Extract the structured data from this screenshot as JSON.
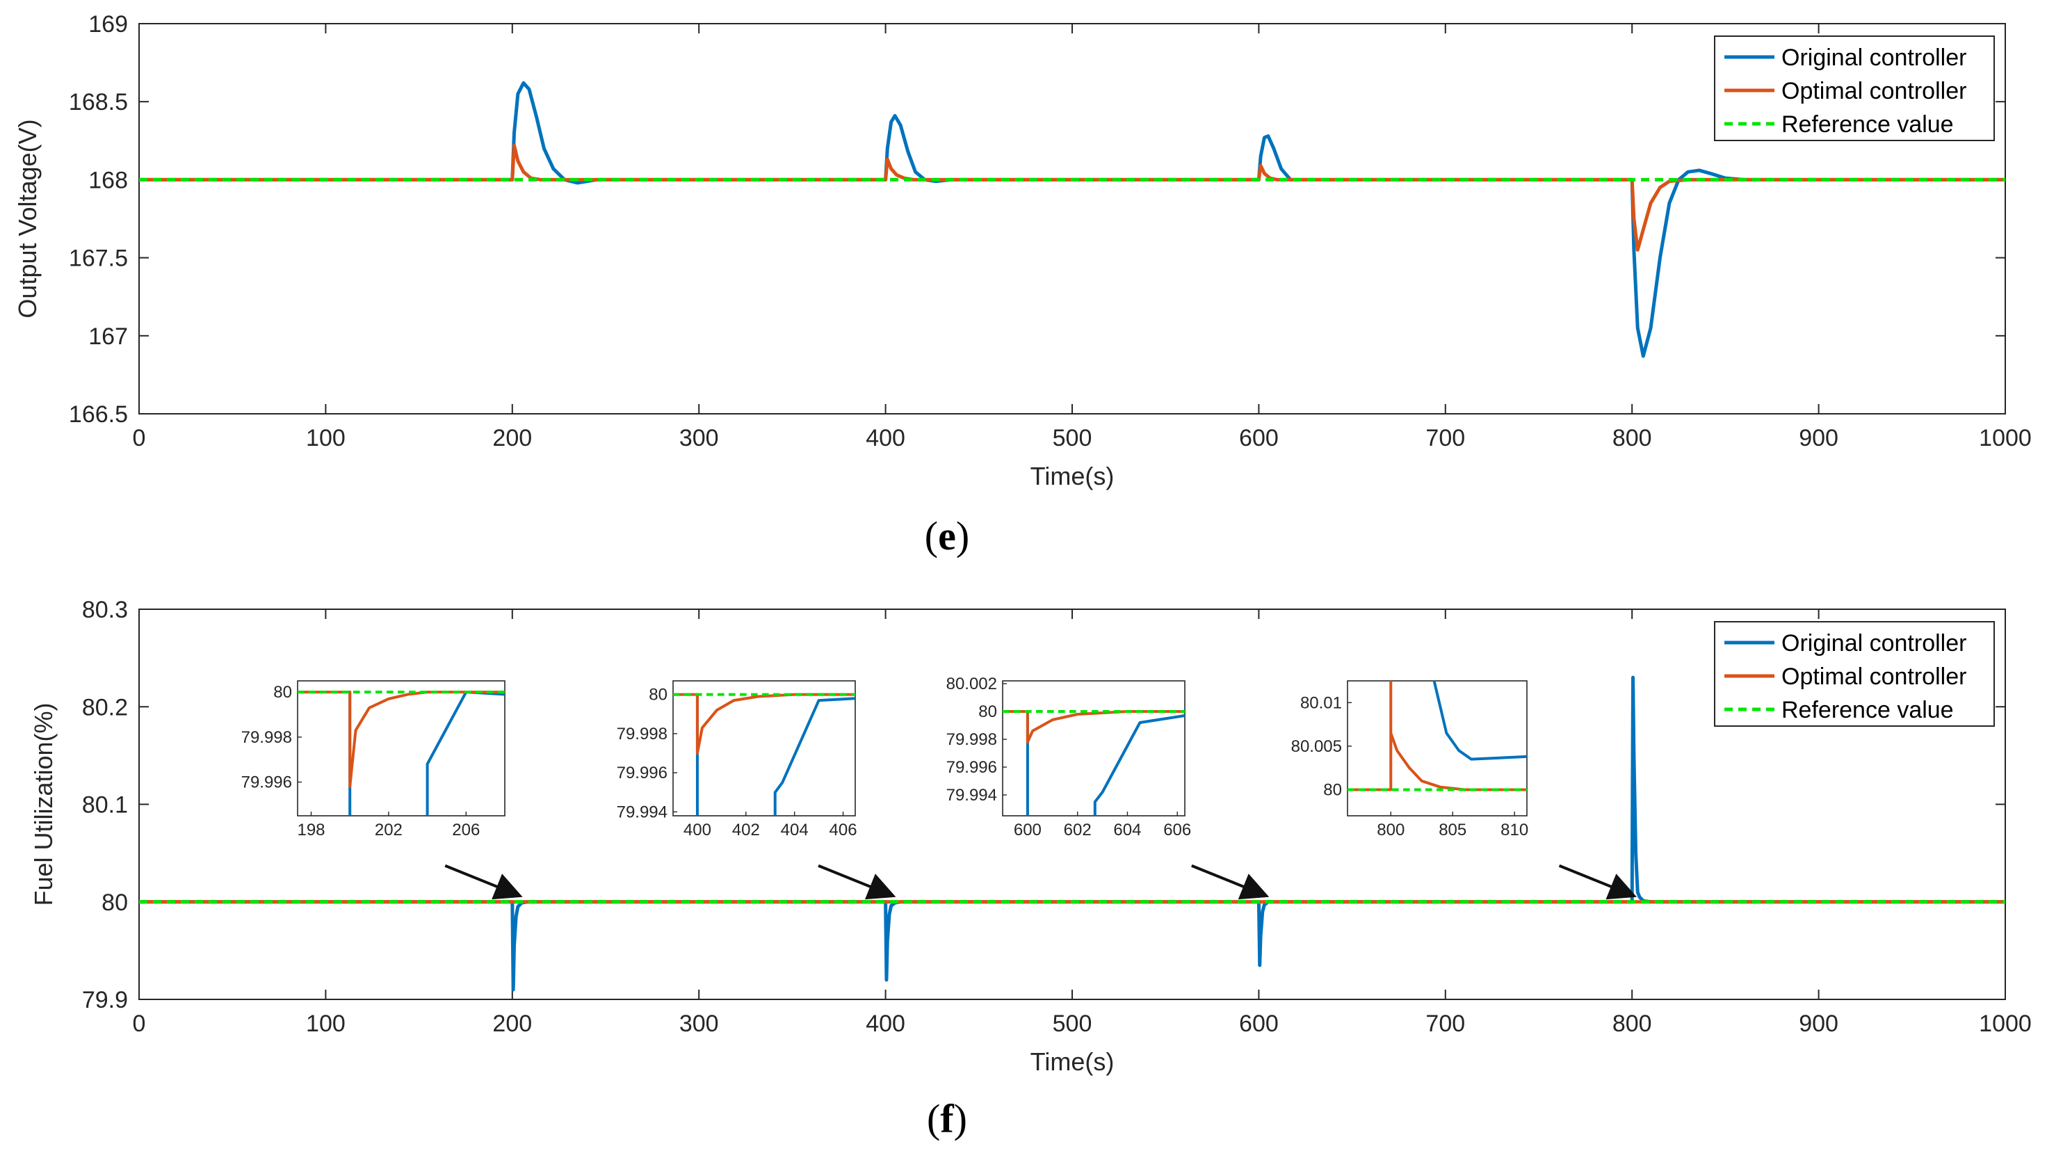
{
  "chart_data": [
    {
      "id": "e",
      "type": "line",
      "caption": "e",
      "xlabel": "Time(s)",
      "ylabel": "Output Voltage(V)",
      "xlim": [
        0,
        1000
      ],
      "ylim": [
        166.5,
        169
      ],
      "xticks": [
        0,
        100,
        200,
        300,
        400,
        500,
        600,
        700,
        800,
        900,
        1000
      ],
      "yticks": [
        166.5,
        167,
        167.5,
        168,
        168.5,
        169
      ],
      "ytick_labels": [
        "166.5",
        "167",
        "167.5",
        "168",
        "168.5",
        "169"
      ],
      "legend": [
        "Original controller",
        "Optimal controller",
        "Reference value"
      ],
      "legend_position": "top-right",
      "series": [
        {
          "name": "Original controller",
          "color": "#0072BD",
          "x": [
            0,
            200,
            201,
            203,
            206,
            209,
            213,
            217,
            222,
            228,
            235,
            245,
            400,
            401,
            403,
            405,
            408,
            412,
            416,
            421,
            427,
            435,
            600,
            601,
            603,
            605,
            608,
            612,
            617,
            625,
            800,
            801,
            803,
            806,
            810,
            815,
            820,
            825,
            830,
            836,
            842,
            850,
            860,
            1000
          ],
          "y": [
            168,
            168,
            168.3,
            168.55,
            168.62,
            168.58,
            168.4,
            168.2,
            168.07,
            168.0,
            167.98,
            168.0,
            168,
            168.2,
            168.37,
            168.41,
            168.35,
            168.18,
            168.05,
            168.0,
            167.99,
            168.0,
            168,
            168.15,
            168.27,
            168.28,
            168.2,
            168.07,
            168.0,
            168.0,
            168,
            167.55,
            167.05,
            166.87,
            167.05,
            167.5,
            167.85,
            168.0,
            168.05,
            168.06,
            168.04,
            168.01,
            168.0,
            168
          ]
        },
        {
          "name": "Optimal controller",
          "color": "#D95319",
          "x": [
            0,
            200,
            201,
            203,
            206,
            210,
            215,
            222,
            400,
            401,
            403,
            406,
            410,
            415,
            600,
            601,
            603,
            606,
            610,
            800,
            801,
            803,
            806,
            810,
            815,
            820,
            830,
            1000
          ],
          "y": [
            168,
            168,
            168.22,
            168.12,
            168.05,
            168.01,
            168.0,
            168.0,
            168,
            168.13,
            168.07,
            168.03,
            168.01,
            168.0,
            168,
            168.09,
            168.04,
            168.01,
            168.0,
            168,
            167.75,
            167.55,
            167.68,
            167.85,
            167.95,
            167.99,
            168.0,
            168
          ]
        },
        {
          "name": "Reference value",
          "color": "#00E600",
          "dashed": true,
          "x": [
            0,
            1000
          ],
          "y": [
            168,
            168
          ]
        }
      ]
    },
    {
      "id": "f",
      "type": "line",
      "caption": "f",
      "xlabel": "Time(s)",
      "ylabel": "Fuel Utilization(%)",
      "xlim": [
        0,
        1000
      ],
      "ylim": [
        79.9,
        80.3
      ],
      "xticks": [
        0,
        100,
        200,
        300,
        400,
        500,
        600,
        700,
        800,
        900,
        1000
      ],
      "yticks": [
        79.9,
        80,
        80.1,
        80.2,
        80.3
      ],
      "ytick_labels": [
        "79.9",
        "80",
        "80.1",
        "80.2",
        "80.3"
      ],
      "legend": [
        "Original controller",
        "Optimal controller",
        "Reference value"
      ],
      "legend_position": "top-right",
      "series": [
        {
          "name": "Original controller",
          "color": "#0072BD",
          "x": [
            0,
            200,
            200.5,
            201,
            202,
            203,
            205,
            208,
            215,
            400,
            400.5,
            401,
            402,
            403,
            405,
            408,
            415,
            600,
            600.5,
            601,
            602,
            603,
            605,
            610,
            800,
            800.5,
            801,
            802,
            803,
            804,
            806,
            810,
            1000
          ],
          "y": [
            80,
            80,
            79.91,
            79.955,
            79.985,
            79.995,
            79.999,
            80.0,
            80.0,
            80,
            79.92,
            79.96,
            79.987,
            79.996,
            79.999,
            80.0,
            80.0,
            80,
            79.935,
            79.965,
            79.99,
            79.997,
            80.0,
            80.0,
            80,
            80.23,
            80.15,
            80.05,
            80.01,
            80.005,
            80.001,
            80.0,
            80
          ]
        },
        {
          "name": "Optimal controller",
          "color": "#D95319",
          "x": [
            0,
            1000
          ],
          "y": [
            80,
            80
          ]
        },
        {
          "name": "Reference value",
          "color": "#00E600",
          "dashed": true,
          "x": [
            0,
            1000
          ],
          "y": [
            80,
            80
          ]
        }
      ],
      "insets": [
        {
          "xlim": [
            197.3,
            208
          ],
          "ylim": [
            79.9945,
            80.0005
          ],
          "xticks": [
            198,
            202,
            206
          ],
          "yticks": [
            79.996,
            79.998,
            80
          ],
          "ytick_labels": [
            "79.996",
            "79.998",
            "80"
          ],
          "arrow_to_x": 205,
          "series": [
            {
              "name": "Original controller",
              "x": [
                200,
                200,
                200,
                204,
                204,
                206,
                208
              ],
              "y": [
                80,
                79.999,
                79.994,
                79.994,
                79.9968,
                80.0,
                79.9999
              ]
            },
            {
              "name": "Optimal controller",
              "x": [
                197.3,
                200,
                200,
                200.3,
                201,
                202,
                203,
                204,
                206,
                208
              ],
              "y": [
                80,
                80,
                79.9958,
                79.9983,
                79.9993,
                79.9997,
                79.9999,
                80,
                80,
                80
              ]
            },
            {
              "name": "Reference value",
              "dashed": true,
              "x": [
                197.3,
                208
              ],
              "y": [
                80,
                80
              ]
            }
          ]
        },
        {
          "xlim": [
            399,
            406.5
          ],
          "ylim": [
            79.9938,
            80.0007
          ],
          "xticks": [
            400,
            402,
            404,
            406
          ],
          "yticks": [
            79.994,
            79.996,
            79.998,
            80
          ],
          "ytick_labels": [
            "79.994",
            "79.996",
            "79.998",
            "80"
          ],
          "arrow_to_x": 405,
          "series": [
            {
              "name": "Original controller",
              "x": [
                400,
                400,
                400,
                403.2,
                403.2,
                403.5,
                405,
                406.5
              ],
              "y": [
                80,
                79.9985,
                79.9935,
                79.9935,
                79.995,
                79.9955,
                79.9997,
                79.9998
              ]
            },
            {
              "name": "Optimal controller",
              "x": [
                399,
                400,
                400,
                400.2,
                400.8,
                401.5,
                402.5,
                404,
                406.5
              ],
              "y": [
                80,
                80,
                79.997,
                79.9983,
                79.9992,
                79.9997,
                79.9999,
                80,
                80
              ]
            },
            {
              "name": "Reference value",
              "dashed": true,
              "x": [
                399,
                406.5
              ],
              "y": [
                80,
                80
              ]
            }
          ]
        },
        {
          "xlim": [
            599,
            606.3
          ],
          "ylim": [
            79.9925,
            80.0022
          ],
          "xticks": [
            600,
            602,
            604,
            606
          ],
          "yticks": [
            79.994,
            79.996,
            79.998,
            80,
            80.002
          ],
          "ytick_labels": [
            "79.994",
            "79.996",
            "79.998",
            "80",
            "80.002"
          ],
          "arrow_to_x": 605,
          "series": [
            {
              "name": "Original controller",
              "x": [
                600,
                600,
                600,
                602.7,
                602.7,
                603,
                604.5,
                606.3
              ],
              "y": [
                80,
                79.9985,
                79.992,
                79.992,
                79.9935,
                79.9942,
                79.9992,
                79.9997
              ]
            },
            {
              "name": "Optimal controller",
              "x": [
                599,
                600,
                600,
                600.2,
                601,
                602,
                603,
                604,
                606.3
              ],
              "y": [
                80,
                80,
                79.9978,
                79.9986,
                79.9994,
                79.9998,
                79.9999,
                80,
                80
              ]
            },
            {
              "name": "Reference value",
              "dashed": true,
              "x": [
                599,
                606.3
              ],
              "y": [
                80,
                80
              ]
            }
          ]
        },
        {
          "xlim": [
            796.5,
            811
          ],
          "ylim": [
            79.997,
            80.0125
          ],
          "xticks": [
            800,
            805,
            810
          ],
          "yticks": [
            80,
            80.005,
            80.01
          ],
          "ytick_labels": [
            "80",
            "80.005",
            "80.01"
          ],
          "arrow_to_x": 802,
          "series": [
            {
              "name": "Original controller",
              "x": [
                803.5,
                804.5,
                805.5,
                806.5,
                811
              ],
              "y": [
                80.0125,
                80.0065,
                80.0045,
                80.0035,
                80.0038
              ]
            },
            {
              "name": "Optimal controller",
              "x": [
                796.5,
                800,
                800,
                800,
                800.5,
                801.5,
                802.5,
                804,
                806,
                811
              ],
              "y": [
                80,
                80,
                80.0125,
                80.0065,
                80.0045,
                80.0025,
                80.001,
                80.0003,
                80,
                80
              ]
            },
            {
              "name": "Reference value",
              "dashed": true,
              "x": [
                796.5,
                811
              ],
              "y": [
                80,
                80
              ]
            }
          ]
        }
      ]
    }
  ]
}
